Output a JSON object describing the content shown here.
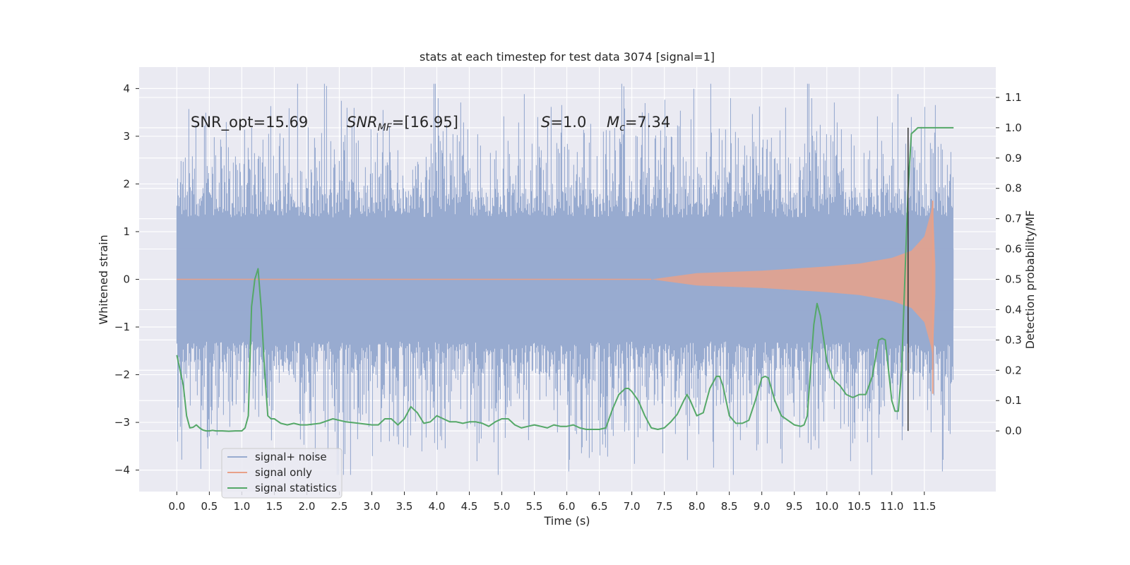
{
  "chart_data": {
    "type": "line",
    "title": "stats at each timestep for test data 3074 [signal=1]",
    "xlabel": "Time (s)",
    "ylabel": "Whitened strain",
    "ylabel_right": "Detection probability/MF",
    "xlim": [
      -0.58,
      12.6
    ],
    "ylim": [
      -4.45,
      4.45
    ],
    "ylim_right": [
      -0.2,
      1.2
    ],
    "x_ticks": [
      "0.0",
      "0.5",
      "1.0",
      "1.5",
      "2.0",
      "2.5",
      "3.0",
      "3.5",
      "4.0",
      "4.5",
      "5.0",
      "5.5",
      "6.0",
      "6.5",
      "7.0",
      "7.5",
      "8.0",
      "8.5",
      "9.0",
      "9.5",
      "10.0",
      "10.5",
      "11.0",
      "11.5"
    ],
    "y_ticks": [
      "4",
      "3",
      "2",
      "1",
      "0",
      "−1",
      "−2",
      "−3",
      "−4"
    ],
    "y_ticks_right": [
      "1.1",
      "1.0",
      "0.9",
      "0.8",
      "0.7",
      "0.6",
      "0.5",
      "0.4",
      "0.3",
      "0.2",
      "0.1",
      "0.0"
    ],
    "grid": true,
    "background": "#eaeaf2",
    "annotations": {
      "snr_opt": "SNR_opt=15.69",
      "snr_mf_main": "SNR",
      "snr_mf_sub": "MF",
      "snr_mf_value": "=[16.95]",
      "s_symbol": "S",
      "s_value": "=1.0",
      "mc_symbol": "M",
      "mc_sub": "c",
      "mc_value": "=7.34"
    },
    "marker_line_x": 11.25,
    "legend": {
      "position": "lower-left",
      "entries": [
        "signal+ noise",
        "signal only",
        "signal statistics"
      ]
    },
    "series": [
      {
        "name": "signal+ noise",
        "color": "#98abd0",
        "t_range": [
          0.0,
          11.95
        ],
        "envelope_typical": 1.3,
        "envelope_peak_max": 4.1,
        "envelope_peak_min": -4.1
      },
      {
        "name": "signal only",
        "color": "#e8a189",
        "t_range": [
          0.0,
          11.67
        ],
        "envelope": [
          [
            7.3,
            0.0
          ],
          [
            8.0,
            0.13
          ],
          [
            9.0,
            0.18
          ],
          [
            10.0,
            0.27
          ],
          [
            10.5,
            0.33
          ],
          [
            11.0,
            0.45
          ],
          [
            11.3,
            0.6
          ],
          [
            11.5,
            0.9
          ],
          [
            11.6,
            1.4
          ],
          [
            11.63,
            1.65
          ],
          [
            11.67,
            0.3
          ]
        ],
        "low_bound_at_end": -2.4
      },
      {
        "name": "signal statistics",
        "color": "#55a868",
        "axis": "right",
        "x": [
          0.0,
          0.05,
          0.1,
          0.15,
          0.2,
          0.25,
          0.3,
          0.35,
          0.4,
          0.45,
          0.5,
          0.55,
          0.6,
          0.7,
          0.8,
          0.9,
          1.0,
          1.05,
          1.1,
          1.15,
          1.2,
          1.25,
          1.3,
          1.35,
          1.4,
          1.45,
          1.5,
          1.6,
          1.7,
          1.8,
          1.9,
          2.0,
          2.2,
          2.4,
          2.6,
          2.8,
          3.0,
          3.1,
          3.2,
          3.3,
          3.4,
          3.5,
          3.6,
          3.7,
          3.8,
          3.9,
          4.0,
          4.1,
          4.2,
          4.3,
          4.4,
          4.5,
          4.6,
          4.7,
          4.8,
          4.9,
          5.0,
          5.1,
          5.2,
          5.3,
          5.4,
          5.5,
          5.6,
          5.7,
          5.8,
          5.9,
          6.0,
          6.1,
          6.2,
          6.3,
          6.4,
          6.5,
          6.6,
          6.7,
          6.8,
          6.9,
          6.95,
          7.0,
          7.1,
          7.2,
          7.3,
          7.4,
          7.5,
          7.6,
          7.7,
          7.8,
          7.85,
          7.9,
          8.0,
          8.1,
          8.2,
          8.3,
          8.35,
          8.4,
          8.5,
          8.6,
          8.7,
          8.8,
          8.9,
          9.0,
          9.05,
          9.1,
          9.2,
          9.3,
          9.4,
          9.5,
          9.6,
          9.65,
          9.7,
          9.8,
          9.85,
          9.9,
          10.0,
          10.1,
          10.2,
          10.3,
          10.4,
          10.5,
          10.6,
          10.7,
          10.8,
          10.85,
          10.9,
          10.95,
          11.0,
          11.05,
          11.1,
          11.15,
          11.2,
          11.25,
          11.3,
          11.35,
          11.4,
          11.5,
          11.6,
          11.7,
          11.8,
          11.9,
          11.95
        ],
        "y": [
          0.25,
          0.2,
          0.15,
          0.05,
          0.01,
          0.012,
          0.02,
          0.01,
          0.003,
          0.0,
          0.0,
          0.002,
          0.0,
          0.0,
          -0.001,
          0.0,
          0.0,
          0.01,
          0.05,
          0.41,
          0.5,
          0.535,
          0.4,
          0.2,
          0.05,
          0.04,
          0.04,
          0.025,
          0.02,
          0.025,
          0.02,
          0.02,
          0.025,
          0.04,
          0.03,
          0.025,
          0.02,
          0.02,
          0.04,
          0.04,
          0.02,
          0.04,
          0.08,
          0.06,
          0.025,
          0.03,
          0.05,
          0.04,
          0.03,
          0.03,
          0.025,
          0.03,
          0.03,
          0.025,
          0.015,
          0.03,
          0.04,
          0.04,
          0.02,
          0.01,
          0.015,
          0.02,
          0.015,
          0.01,
          0.02,
          0.015,
          0.015,
          0.02,
          0.01,
          0.005,
          0.005,
          0.005,
          0.01,
          0.07,
          0.12,
          0.14,
          0.14,
          0.13,
          0.1,
          0.05,
          0.01,
          0.005,
          0.01,
          0.03,
          0.055,
          0.1,
          0.12,
          0.1,
          0.05,
          0.06,
          0.14,
          0.18,
          0.18,
          0.15,
          0.05,
          0.025,
          0.025,
          0.035,
          0.1,
          0.175,
          0.18,
          0.175,
          0.1,
          0.05,
          0.035,
          0.02,
          0.015,
          0.02,
          0.05,
          0.35,
          0.42,
          0.38,
          0.23,
          0.17,
          0.15,
          0.12,
          0.11,
          0.12,
          0.12,
          0.18,
          0.3,
          0.305,
          0.3,
          0.2,
          0.1,
          0.065,
          0.065,
          0.2,
          0.5,
          0.8,
          0.98,
          0.99,
          1.0,
          1.0,
          1.0,
          1.0,
          1.0,
          1.0,
          1.0
        ]
      }
    ]
  }
}
